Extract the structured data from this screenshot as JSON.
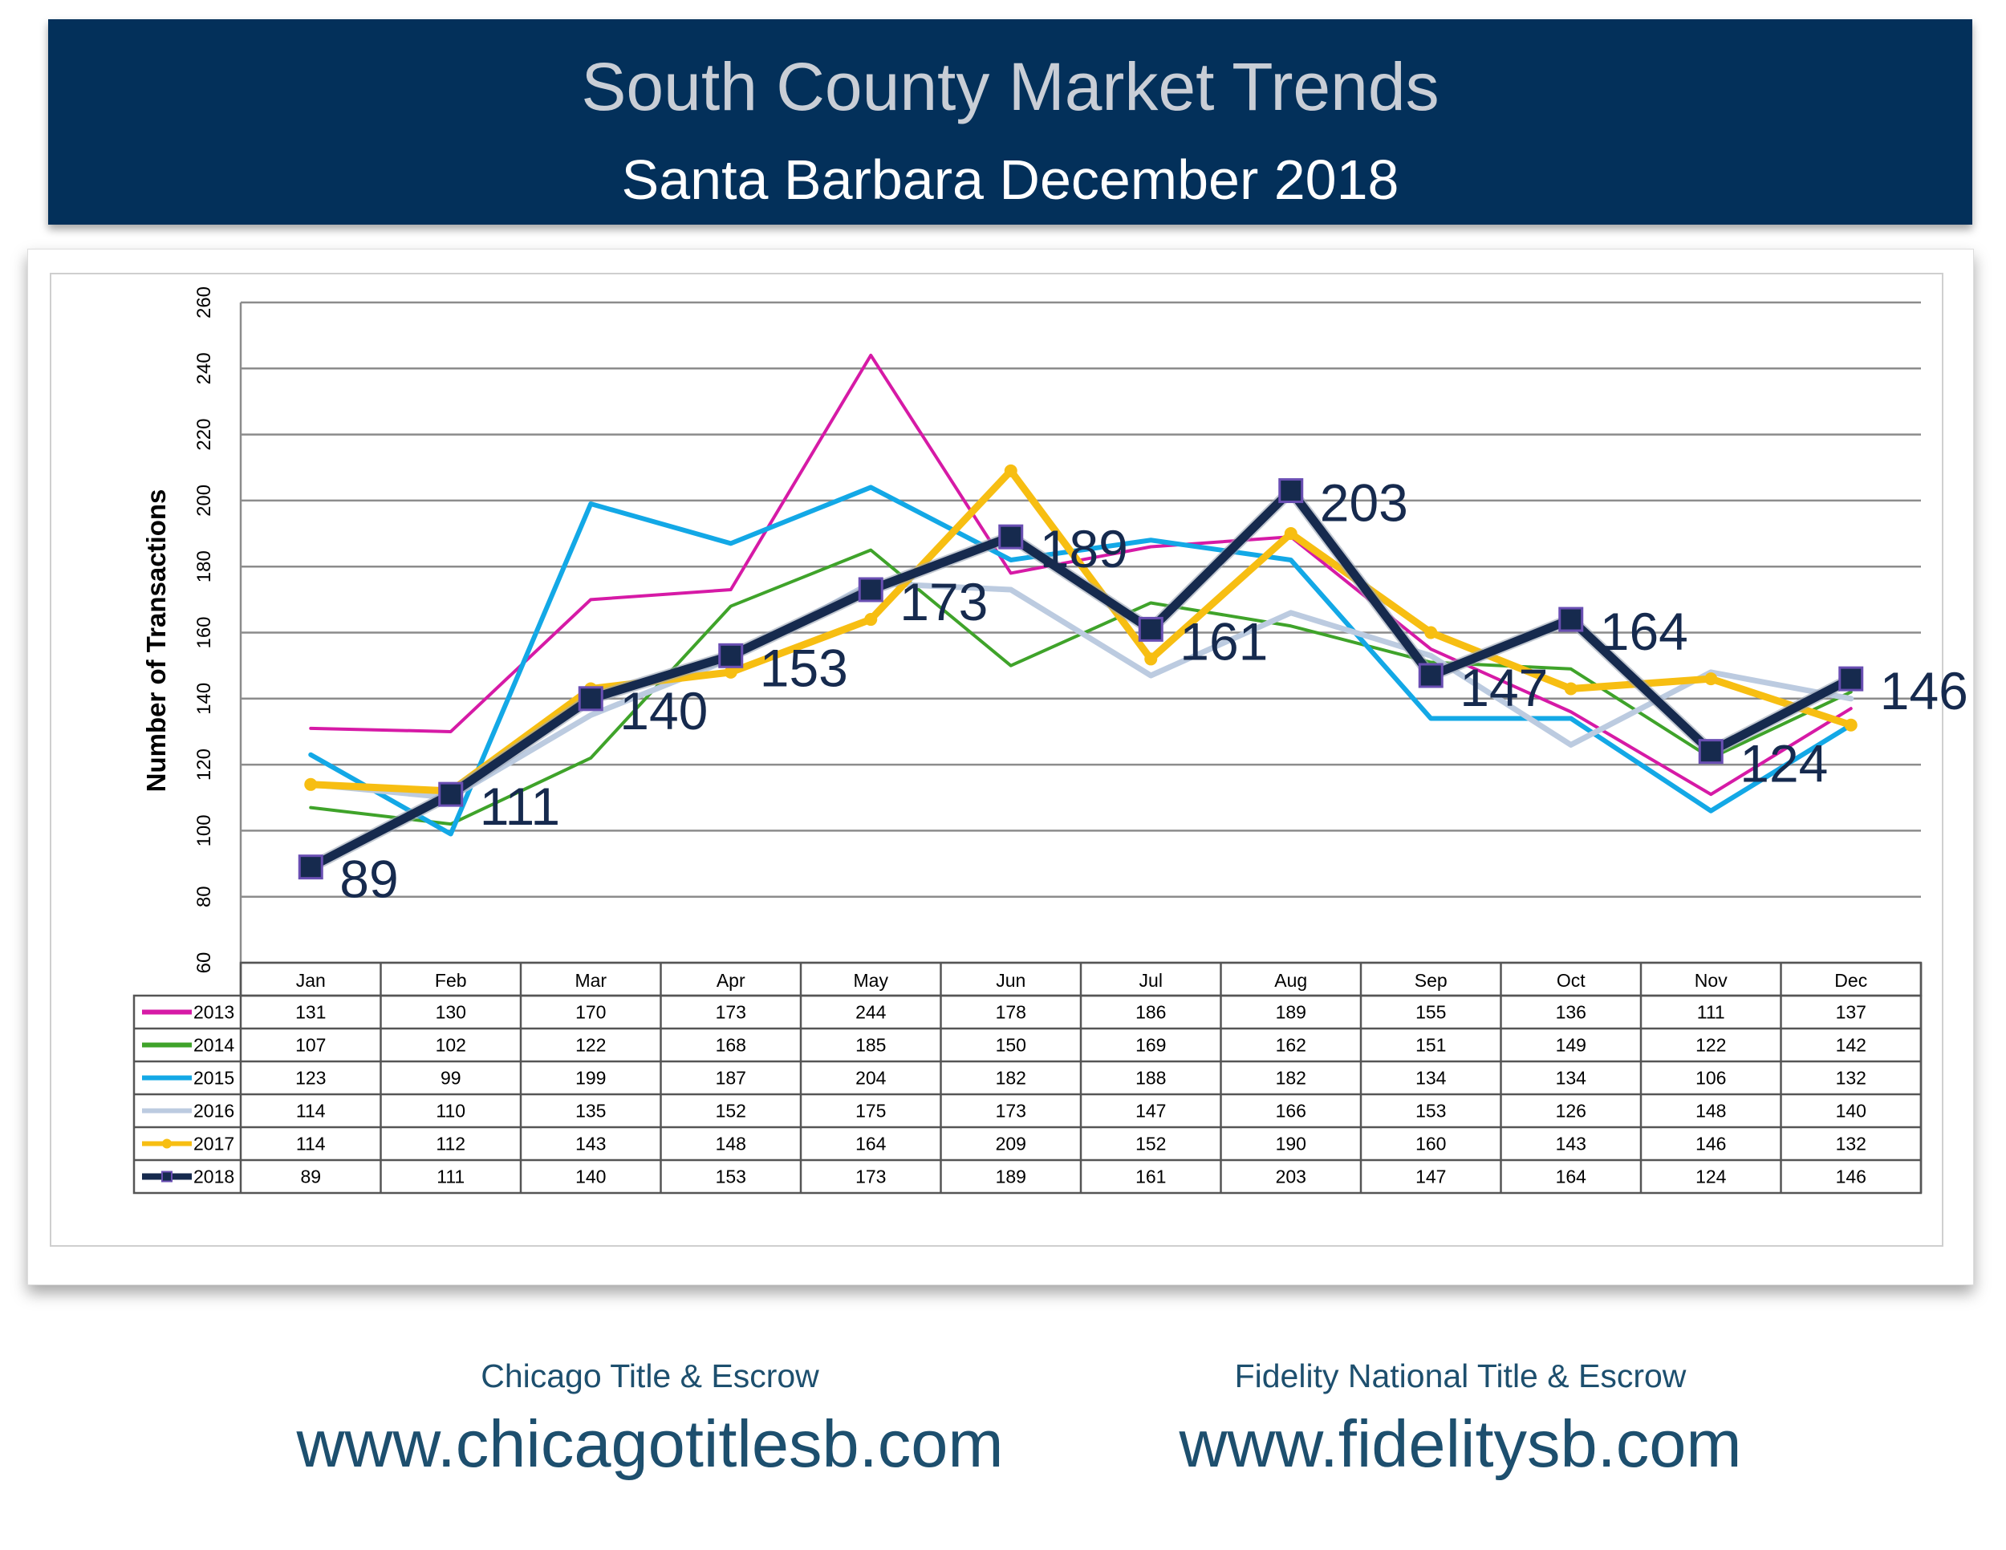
{
  "header": {
    "title": "South County Market Trends",
    "subtitle": "Santa Barbara December 2018",
    "bg_color": "#03305a"
  },
  "footer": {
    "left_company": "Chicago Title & Escrow",
    "left_url": "www.chicagotitlesb.com",
    "right_company": "Fidelity National Title & Escrow",
    "right_url": "www.fidelitysb.com",
    "text_color": "#1d4f6e"
  },
  "chart_data": {
    "type": "line",
    "ylabel": "Number of Transactions",
    "ylim": [
      60,
      260
    ],
    "yticks": [
      60,
      80,
      100,
      120,
      140,
      160,
      180,
      200,
      220,
      240,
      260
    ],
    "grid": true,
    "categories": [
      "Jan",
      "Feb",
      "Mar",
      "Apr",
      "May",
      "Jun",
      "Jul",
      "Aug",
      "Sep",
      "Oct",
      "Nov",
      "Dec"
    ],
    "series": [
      {
        "name": "2013",
        "color": "#d61aa6",
        "values": [
          131,
          130,
          170,
          173,
          244,
          178,
          186,
          189,
          155,
          136,
          111,
          137
        ]
      },
      {
        "name": "2014",
        "color": "#3fa32a",
        "values": [
          107,
          102,
          122,
          168,
          185,
          150,
          169,
          162,
          151,
          149,
          122,
          142
        ]
      },
      {
        "name": "2015",
        "color": "#13a8e6",
        "values": [
          123,
          99,
          199,
          187,
          204,
          182,
          188,
          182,
          134,
          134,
          106,
          132
        ]
      },
      {
        "name": "2016",
        "color": "#bccbe0",
        "values": [
          114,
          110,
          135,
          152,
          175,
          173,
          147,
          166,
          153,
          126,
          148,
          140
        ]
      },
      {
        "name": "2017",
        "color": "#f7be12",
        "values": [
          114,
          112,
          143,
          148,
          164,
          209,
          152,
          190,
          160,
          143,
          146,
          132
        ]
      },
      {
        "name": "2018",
        "color": "#162a4e",
        "values": [
          89,
          111,
          140,
          153,
          173,
          189,
          161,
          203,
          147,
          164,
          124,
          146
        ],
        "data_labels": true
      }
    ]
  }
}
